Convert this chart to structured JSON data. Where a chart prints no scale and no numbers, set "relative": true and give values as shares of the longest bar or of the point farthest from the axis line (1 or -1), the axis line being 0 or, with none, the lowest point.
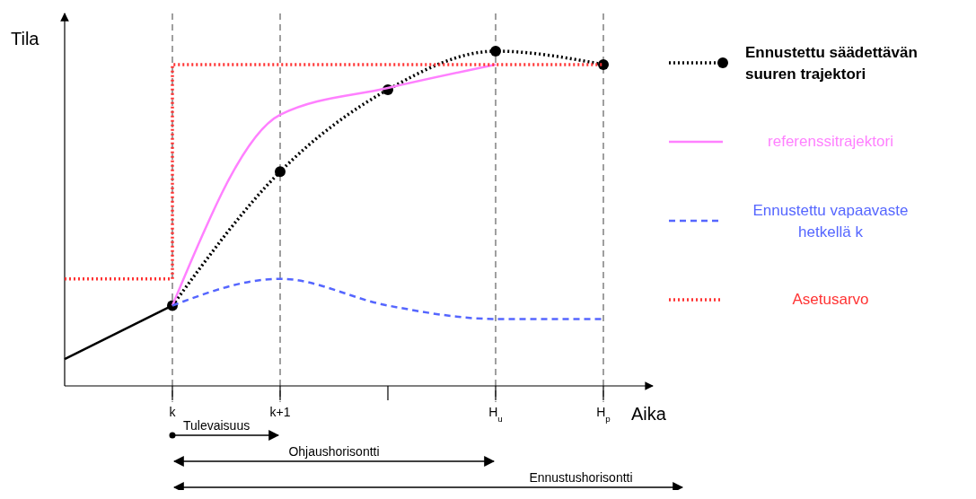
{
  "chart_data": {
    "type": "line",
    "relative": true,
    "xlabel": "Aika",
    "ylabel": "Tila",
    "categories": [
      null,
      "k",
      "k+1",
      null,
      "H$_{u}$",
      "H$_{p}$"
    ],
    "series": [
      {
        "color": "#000000",
        "values": [
          0.08,
          0.24,
          null,
          null,
          null,
          null
        ],
        "line_style": "solid"
      },
      {
        "name": "Ennustettu säädettävän suuren trajektori",
        "color": "#000000",
        "values": [
          null,
          0.24,
          0.64,
          0.885,
          1,
          0.96
        ],
        "line_style": "dotted",
        "marker": "circle"
      },
      {
        "name": "referenssitrajektori",
        "color": "#ff80ff",
        "values": [
          null,
          0.24,
          0.81,
          0.89,
          0.96,
          null
        ],
        "line_style": "solid"
      },
      {
        "name": "Ennustettu vapaavaste hetkellä k",
        "color": "#5566ff",
        "values": [
          null,
          0.24,
          0.32,
          0.24,
          0.2,
          0.2
        ],
        "line_style": "dashed"
      },
      {
        "name": "Asetusarvo",
        "type": "step",
        "color": "#ff3333",
        "values": [
          0.32,
          0.96,
          0.96,
          0.96,
          0.96,
          0.96
        ],
        "line_style": "dotted"
      }
    ],
    "ref_lines": [
      {
        "axis": "x",
        "value": "k",
        "color": "#808080",
        "line_style": "dashed"
      },
      {
        "axis": "x",
        "value": "k+1",
        "color": "#808080",
        "line_style": "dashed"
      },
      {
        "axis": "x",
        "value": "H$_{u}$",
        "color": "#808080",
        "line_style": "dashed"
      },
      {
        "axis": "x",
        "value": "H$_{p}$",
        "color": "#808080",
        "line_style": "dashed"
      }
    ],
    "annotations": [
      "Tulevaisuus",
      "Ohjaushorisontti",
      "Ennustushorisontti"
    ],
    "legend": "right",
    "grid": false
  }
}
